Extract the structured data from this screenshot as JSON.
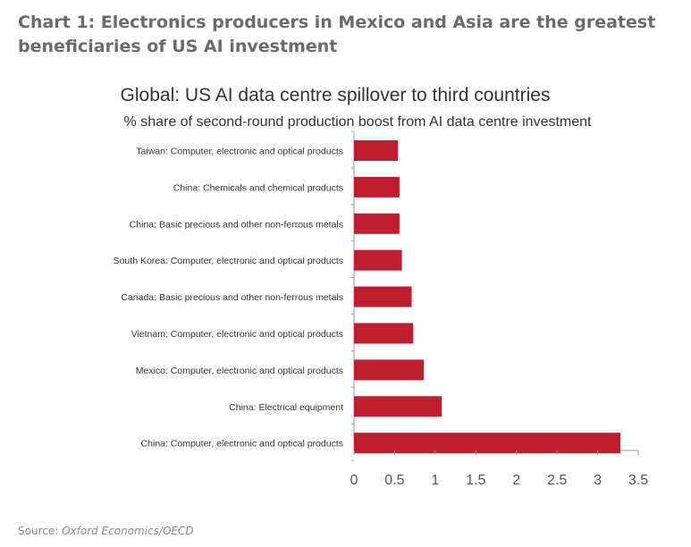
{
  "headline": "Chart 1: Electronics producers in Mexico and Asia are the greatest beneficiaries of US AI investment",
  "source": {
    "label": "Source: ",
    "value": "Oxford Economics/OECD"
  },
  "chart_data": {
    "type": "bar",
    "orientation": "horizontal",
    "title": "Global: US AI data centre spillover to third countries",
    "subtitle": "% share of second-round production boost from AI data centre investment",
    "categories": [
      "Taiwan: Computer, electronic and optical products",
      "China: Chemicals and chemical products",
      "China: Basic precious and other non-ferrous metals",
      "South Korea: Computer, electronic and optical products",
      "Canada: Basic precious and other non-ferrous metals",
      "Vietnam: Computer, electronic and optical products",
      "Mexico: Computer, electronic and optical products",
      "China: Electrical equipment",
      "China: Computer, electronic and optical products"
    ],
    "values": [
      0.54,
      0.56,
      0.56,
      0.59,
      0.71,
      0.73,
      0.86,
      1.08,
      3.28
    ],
    "xlim": [
      0,
      3.5
    ],
    "xticks": [
      "0",
      "0.5",
      "1",
      "1.5",
      "2",
      "2.5",
      "3",
      "3.5"
    ],
    "grid": false,
    "bar_color": "#be1e2d"
  }
}
